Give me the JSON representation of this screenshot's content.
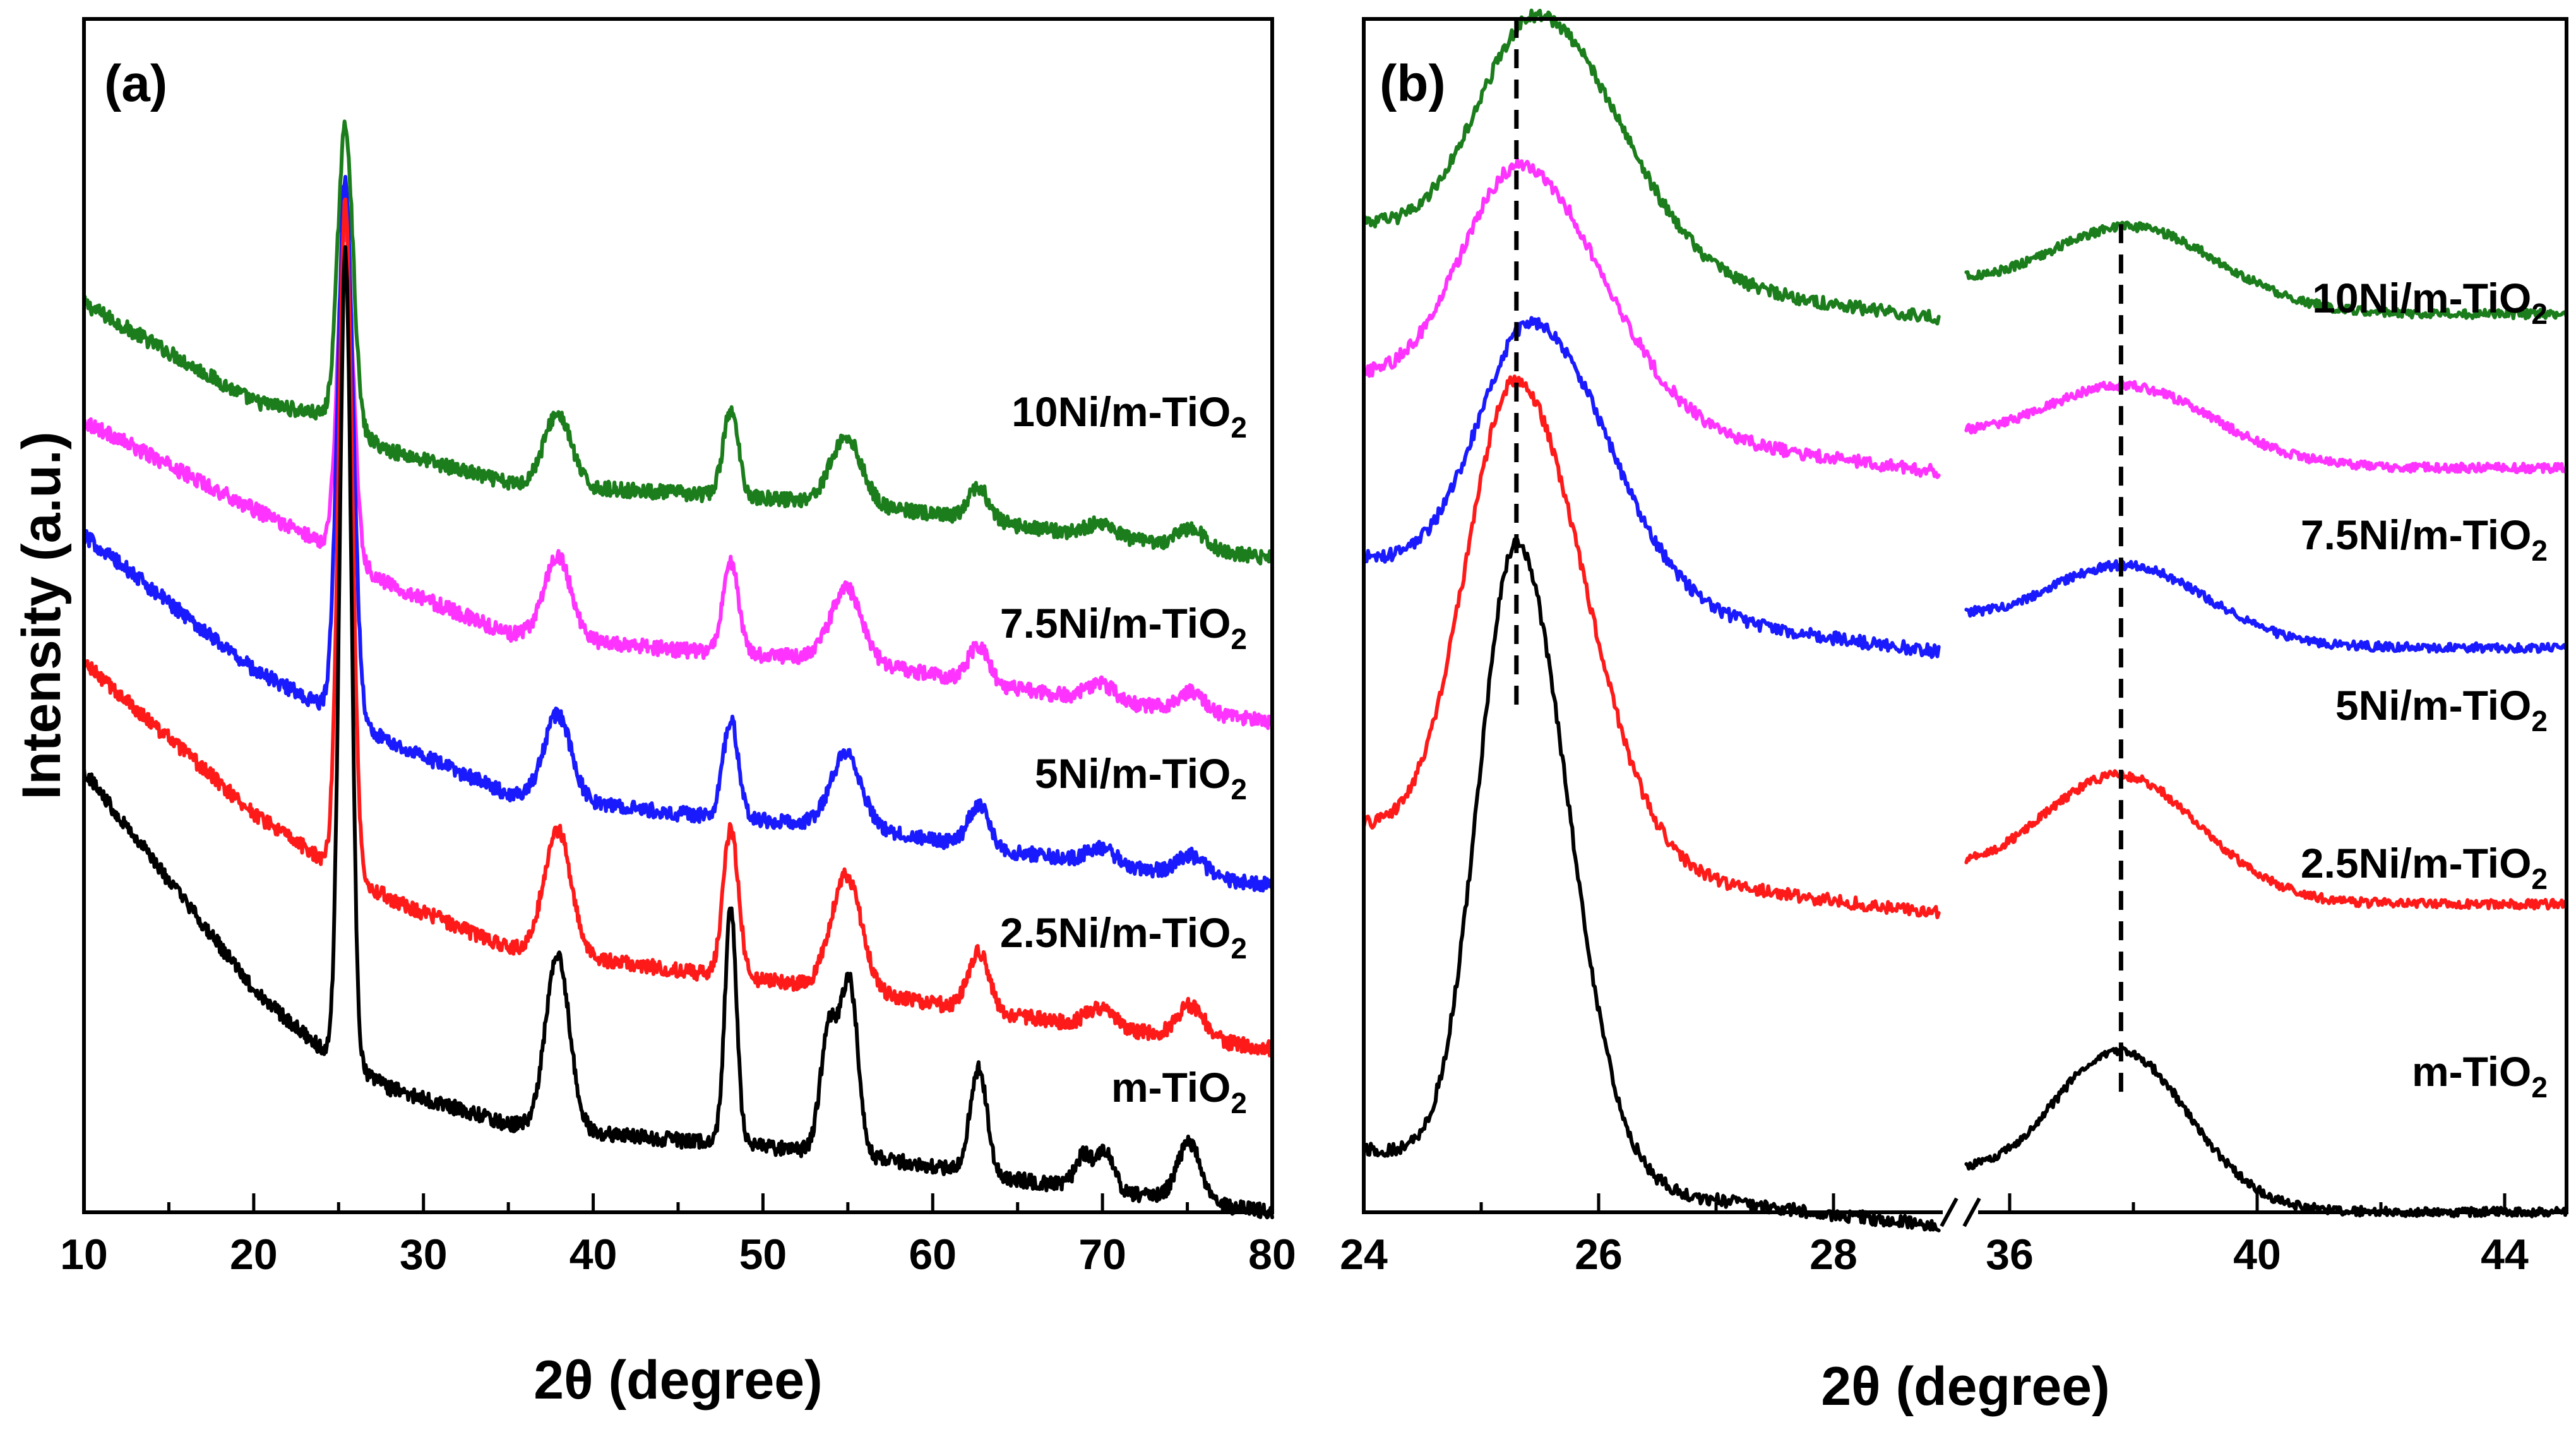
{
  "chart_data": [
    {
      "panel": "(a)",
      "type": "line",
      "xlabel": "2θ (degree)",
      "ylabel": "Intensity (a.u.)",
      "xlim": [
        10,
        80
      ],
      "ylim": [
        0,
        3.65
      ],
      "xticks": [
        10,
        20,
        30,
        40,
        50,
        60,
        70,
        80
      ],
      "y_ticks_shown": false,
      "grid": false,
      "series": [
        {
          "name": "10Ni/m-TiO2",
          "label_main": "10Ni/m-TiO",
          "label_sub": "2",
          "color": "#1b7d1b",
          "offset": 2.0,
          "baseline": [
            [
              10,
              0.78
            ],
            [
              20,
              0.48
            ],
            [
              24,
              0.44
            ],
            [
              28,
              0.33
            ],
            [
              35,
              0.23
            ],
            [
              45,
              0.2
            ],
            [
              55,
              0.17
            ],
            [
              65,
              0.1
            ],
            [
              80,
              0.0
            ]
          ],
          "peaks": [
            [
              25.4,
              0.92,
              0.45
            ],
            [
              37.9,
              0.22,
              0.8
            ],
            [
              48.1,
              0.26,
              0.45
            ],
            [
              54.9,
              0.2,
              0.9
            ],
            [
              62.7,
              0.1,
              0.6
            ],
            [
              69.9,
              0.04,
              0.8
            ],
            [
              75.2,
              0.06,
              0.8
            ]
          ]
        },
        {
          "name": "7.5Ni/m-TiO2",
          "label_main": "7.5Ni/m-TiO",
          "label_sub": "2",
          "color": "#ff33ff",
          "offset": 1.5,
          "baseline": [
            [
              10,
              0.92
            ],
            [
              20,
              0.65
            ],
            [
              24,
              0.55
            ],
            [
              28,
              0.42
            ],
            [
              35,
              0.27
            ],
            [
              45,
              0.22
            ],
            [
              55,
              0.19
            ],
            [
              65,
              0.1
            ],
            [
              80,
              0.0
            ]
          ],
          "peaks": [
            [
              25.4,
              1.0,
              0.45
            ],
            [
              37.9,
              0.25,
              0.8
            ],
            [
              48.1,
              0.28,
              0.45
            ],
            [
              54.9,
              0.22,
              0.9
            ],
            [
              62.7,
              0.11,
              0.6
            ],
            [
              69.9,
              0.05,
              0.8
            ],
            [
              75.2,
              0.06,
              0.8
            ]
          ]
        },
        {
          "name": "5Ni/m-TiO2",
          "label_main": "5Ni/m-TiO",
          "label_sub": "2",
          "color": "#1a1aff",
          "offset": 1.0,
          "baseline": [
            [
              10,
              1.07
            ],
            [
              20,
              0.66
            ],
            [
              24,
              0.55
            ],
            [
              28,
              0.44
            ],
            [
              35,
              0.28
            ],
            [
              45,
              0.22
            ],
            [
              55,
              0.18
            ],
            [
              65,
              0.1
            ],
            [
              80,
              0.0
            ]
          ],
          "peaks": [
            [
              25.4,
              1.65,
              0.45
            ],
            [
              37.9,
              0.26,
              0.8
            ],
            [
              48.1,
              0.3,
              0.45
            ],
            [
              54.9,
              0.22,
              0.9
            ],
            [
              62.7,
              0.13,
              0.6
            ],
            [
              69.9,
              0.05,
              0.8
            ],
            [
              75.2,
              0.06,
              0.8
            ]
          ]
        },
        {
          "name": "2.5Ni/m-TiO2",
          "label_main": "2.5Ni/m-TiO",
          "label_sub": "2",
          "color": "#ff1a1a",
          "offset": 0.5,
          "baseline": [
            [
              10,
              1.18
            ],
            [
              20,
              0.72
            ],
            [
              24,
              0.58
            ],
            [
              28,
              0.46
            ],
            [
              35,
              0.31
            ],
            [
              45,
              0.24
            ],
            [
              55,
              0.18
            ],
            [
              65,
              0.1
            ],
            [
              80,
              0.0
            ]
          ],
          "peaks": [
            [
              25.4,
              2.05,
              0.4
            ],
            [
              37.9,
              0.38,
              0.8
            ],
            [
              48.1,
              0.45,
              0.45
            ],
            [
              54.9,
              0.35,
              0.9
            ],
            [
              62.7,
              0.18,
              0.6
            ],
            [
              69.9,
              0.06,
              0.8
            ],
            [
              75.2,
              0.1,
              0.8
            ]
          ]
        },
        {
          "name": "m-TiO2",
          "label_main": "m-TiO",
          "label_sub": "2",
          "color": "#000000",
          "offset": 0.0,
          "baseline": [
            [
              10,
              1.35
            ],
            [
              20,
              0.68
            ],
            [
              24,
              0.5
            ],
            [
              28,
              0.38
            ],
            [
              35,
              0.27
            ],
            [
              45,
              0.22
            ],
            [
              55,
              0.18
            ],
            [
              65,
              0.1
            ],
            [
              80,
              0.0
            ]
          ],
          "peaks": [
            [
              25.4,
              2.48,
              0.35
            ],
            [
              37.9,
              0.53,
              0.7
            ],
            [
              48.1,
              0.72,
              0.35
            ],
            [
              53.9,
              0.38,
              0.5
            ],
            [
              55.1,
              0.52,
              0.5
            ],
            [
              62.7,
              0.32,
              0.5
            ],
            [
              68.9,
              0.1,
              0.5
            ],
            [
              70.2,
              0.12,
              0.5
            ],
            [
              75.1,
              0.18,
              0.7
            ]
          ]
        }
      ]
    },
    {
      "panel": "(b)",
      "type": "line",
      "xlabel": "2θ (degree)",
      "xlim_segments": [
        [
          24,
          29
        ],
        [
          35,
          45
        ]
      ],
      "axis_break": true,
      "xticks": [
        24,
        26,
        28,
        36,
        40,
        44
      ],
      "reference_lines_x": [
        25.3,
        37.8
      ],
      "y_ticks_shown": false,
      "grid": false,
      "ylim": [
        0,
        4.65
      ],
      "series": [
        {
          "name": "10Ni/m-TiO2",
          "label_main": "10Ni/m-TiO",
          "label_sub": "2",
          "color": "#1b7d1b",
          "offset": 3.5,
          "p1": [
            25.5,
            0.95,
            0.6
          ],
          "base1": [
            0.0,
            0.35,
            -0.03
          ],
          "p2": [
            38.0,
            0.32,
            1.4
          ],
          "base2": [
            0.1,
            0.0
          ]
        },
        {
          "name": "7.5Ni/m-TiO2",
          "label_main": "7.5Ni/m-TiO",
          "label_sub": "2",
          "color": "#ff33ff",
          "offset": 2.9,
          "p1": [
            25.35,
            0.95,
            0.6
          ],
          "base1": [
            0.0,
            0.35,
            -0.03
          ],
          "p2": [
            37.9,
            0.3,
            1.4
          ],
          "base2": [
            0.1,
            0.0
          ]
        },
        {
          "name": "5Ni/m-TiO2",
          "label_main": "5Ni/m-TiO",
          "label_sub": "2",
          "color": "#1a1aff",
          "offset": 2.2,
          "p1": [
            25.45,
            1.05,
            0.55
          ],
          "base1": [
            0.0,
            0.35,
            -0.03
          ],
          "p2": [
            37.9,
            0.3,
            1.3
          ],
          "base2": [
            0.1,
            0.0
          ]
        },
        {
          "name": "2.5Ni/m-TiO2",
          "label_main": "2.5Ni/m-TiO",
          "label_sub": "2",
          "color": "#ff1a1a",
          "offset": 1.2,
          "p1": [
            25.3,
            1.85,
            0.5
          ],
          "base1": [
            0.0,
            0.3,
            -0.03
          ],
          "p2": [
            37.8,
            0.48,
            1.3
          ],
          "base2": [
            0.1,
            0.0
          ]
        },
        {
          "name": "m-TiO2",
          "label_main": "m-TiO",
          "label_sub": "2",
          "color": "#000000",
          "offset": 0.0,
          "p1": [
            25.3,
            2.45,
            0.38
          ],
          "base1": [
            0.0,
            0.25,
            -0.03
          ],
          "p2": [
            37.8,
            0.6,
            1.1
          ],
          "base2": [
            0.14,
            0.0
          ]
        }
      ]
    }
  ]
}
